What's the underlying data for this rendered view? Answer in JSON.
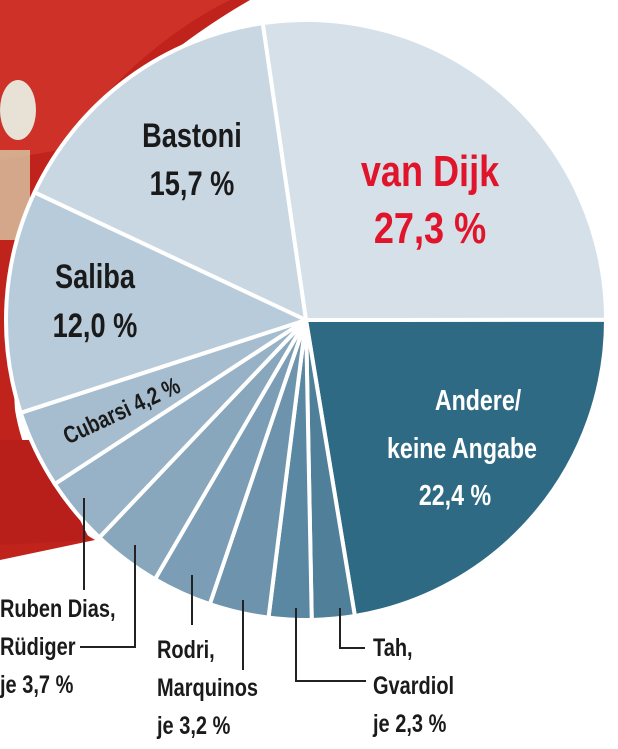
{
  "chart_data": {
    "type": "pie",
    "unit": "%",
    "slices": [
      {
        "label": "van Dijk",
        "value": 27.3,
        "value_text": "27,3 %",
        "color": "#d5e0e9",
        "text_color": "#e0142b"
      },
      {
        "label": "Andere/ keine Angabe",
        "line1": "Andere/",
        "line2": "keine Angabe",
        "value": 22.4,
        "value_text": "22,4 %",
        "color": "#2f6a84",
        "text_color": "#ffffff"
      },
      {
        "label": "Tah",
        "value": 2.3,
        "color": "#4f7f99"
      },
      {
        "label": "Gvardiol",
        "value": 2.3,
        "color": "#5a87a1"
      },
      {
        "label": "Rodri",
        "value": 3.2,
        "color": "#6e94ad"
      },
      {
        "label": "Marquinos",
        "value": 3.2,
        "color": "#7b9db5"
      },
      {
        "label": "Ruben Dias",
        "value": 3.7,
        "color": "#88a7bd"
      },
      {
        "label": "Rüdiger",
        "value": 3.7,
        "color": "#97b2c6"
      },
      {
        "label": "Cubarsi",
        "value": 4.2,
        "value_text": "Cubarsi 4,2 %",
        "color": "#a6bdcf"
      },
      {
        "label": "Saliba",
        "value": 12.0,
        "value_text": "12,0 %",
        "color": "#b8cbda",
        "text_color": "#1a1a1a"
      },
      {
        "label": "Bastoni",
        "value": 15.7,
        "value_text": "15,7 %",
        "color": "#c9d7e3",
        "text_color": "#1a1a1a"
      }
    ],
    "callouts": {
      "dias_ruediger": {
        "line1": "Ruben Dias,",
        "line2": "Rüdiger",
        "line3": "je 3,7 %"
      },
      "rodri_marquinos": {
        "line1": "Rodri,",
        "line2": "Marquinos",
        "line3": "je 3,2 %"
      },
      "tah_gvardiol": {
        "line1": "Tah,",
        "line2": "Gvardiol",
        "line3": "je 2,3 %"
      }
    },
    "start_angle_deg": -8.3,
    "direction": "clockwise"
  }
}
